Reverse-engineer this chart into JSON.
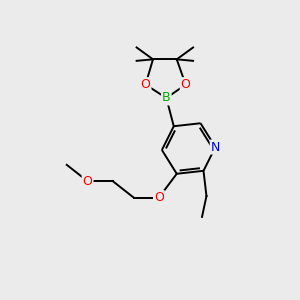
{
  "background_color": "#ebebeb",
  "bond_color": "#000000",
  "atom_colors": {
    "O": "#ff0000",
    "N": "#0000cc",
    "B": "#00aa00",
    "C": "#000000"
  },
  "lw": 1.4,
  "fontsize": 9
}
